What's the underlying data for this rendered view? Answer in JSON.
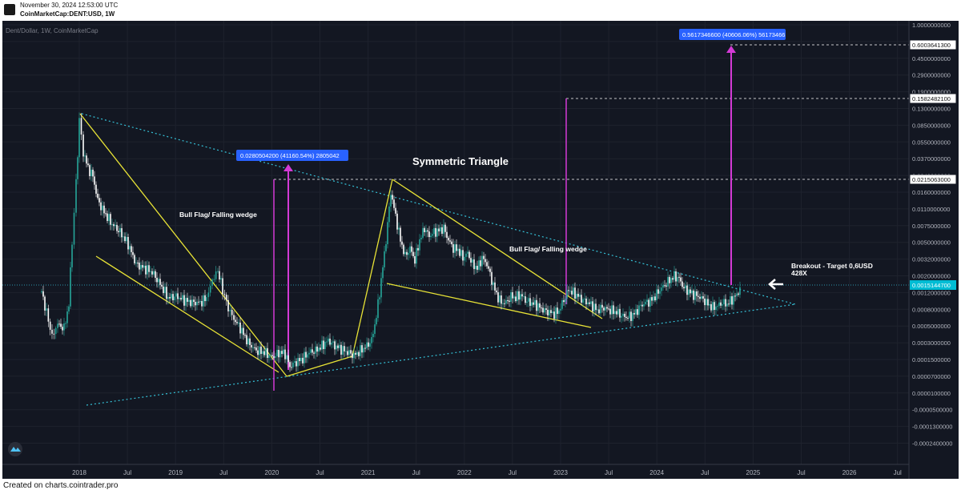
{
  "header": {
    "timestamp": "November 30, 2024 12:53:00 UTC",
    "symbol_line": "CoinMarketCap:DENT:USD, 1W"
  },
  "chart_title": "Dent/Dollar, 1W, CoinMarketCap",
  "footer": {
    "text": "Created on charts.cointrader.pro"
  },
  "colors": {
    "background": "#131722",
    "candle_up": "#26a69a",
    "candle_down": "#ffffff",
    "trend_yellow": "#e8e336",
    "dotted_cyan": "#35c0d6",
    "measure_magenta": "#d43ad6",
    "label_blue": "#2962ff"
  },
  "chart_data": {
    "type": "candlestick",
    "yscale": "log",
    "x_ticks": [
      "2018",
      "Jul",
      "2019",
      "Jul",
      "2020",
      "Jul",
      "2021",
      "Jul",
      "2022",
      "Jul",
      "2023",
      "Jul",
      "2024",
      "Jul",
      "2025",
      "Jul",
      "2026",
      "Jul"
    ],
    "y_ticks": [
      "1.0000000000",
      "0.7000000000",
      "0.4500000000",
      "0.2900000000",
      "0.1900000000",
      "0.1300000000",
      "0.0850000000",
      "0.0550000000",
      "0.0370000000",
      "0.0240000000",
      "0.0160000000",
      "0.0110000000",
      "0.0075000000",
      "0.0050000000",
      "0.0032000000",
      "0.0020000000",
      "0.0012000000",
      "0.0008000000",
      "0.0005000000",
      "0.0003000000",
      "0.0001500000",
      "0.0000700000",
      "0.0000100000",
      "-0.0000500000",
      "-0.0001300000",
      "-0.0002400000"
    ],
    "price_labels": [
      {
        "value": "0.6003641300",
        "kind": "level"
      },
      {
        "value": "0.1582482100",
        "kind": "level"
      },
      {
        "value": "0.0215063000",
        "kind": "level"
      },
      {
        "value": "0.0015144700",
        "kind": "current"
      }
    ],
    "measure_labels": [
      "0.0280504200 (41160.54%) 2805042",
      "0.5617346600 (40606.06%) 56173466"
    ],
    "annotations": [
      "Symmetric Triangle",
      "Bull Flag/ Falling wedge",
      "Bull Flag/ Falling wedge",
      "Breakout - Target 0,6USD",
      "428X"
    ]
  }
}
